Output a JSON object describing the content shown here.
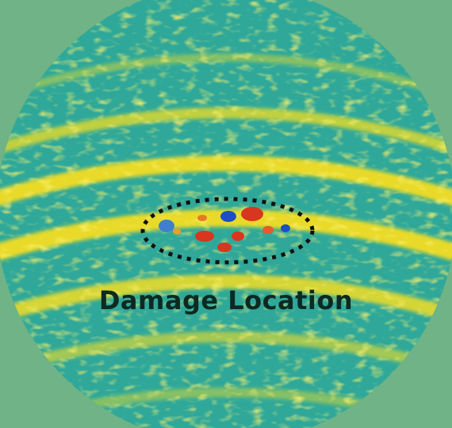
{
  "image": {
    "caption": "Damage Location",
    "colors": {
      "background": "#6fb386",
      "field": "#2fa89a",
      "band": "#f2dd24",
      "damage_high": "#d8361e",
      "damage_low": "#1e4ec4",
      "marker": "#111111"
    }
  }
}
